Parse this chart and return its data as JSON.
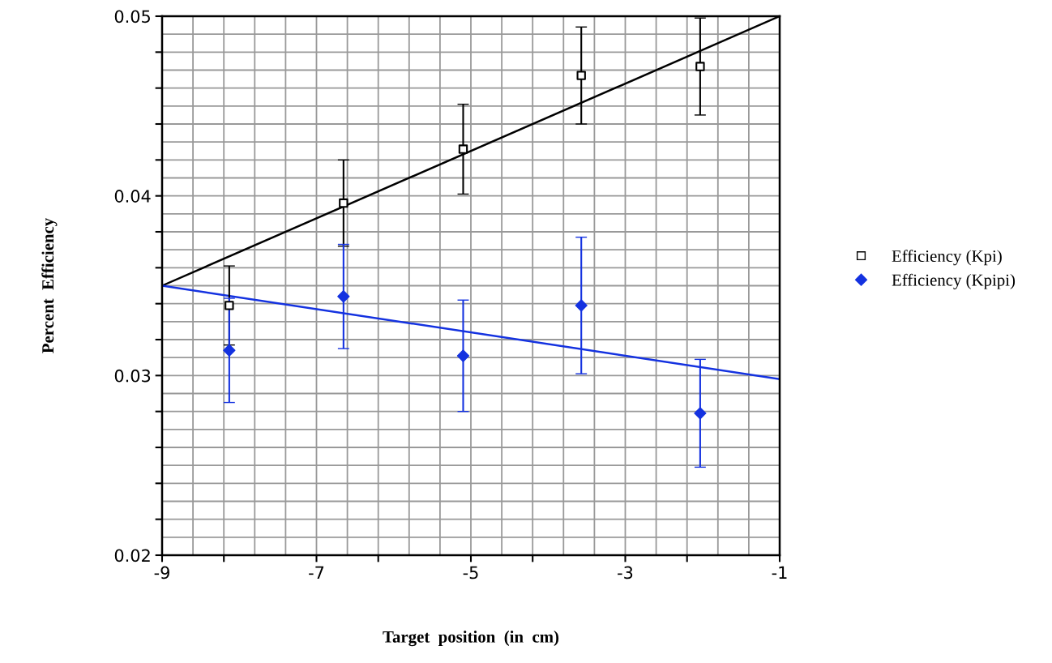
{
  "chart_data": {
    "type": "scatter",
    "xlabel": "Target  position  (in  cm)",
    "ylabel": "Percent  Efficiency",
    "xlim": [
      -9,
      -1
    ],
    "xticks": [
      -9,
      {
        "value": -8.2,
        "label": null
      },
      -7,
      {
        "value": -6.2,
        "label": null
      },
      -5,
      {
        "value": -4.2,
        "label": null
      },
      -3,
      {
        "value": -2.2,
        "label": null
      },
      -1
    ],
    "ylim": [
      0.02,
      0.05
    ],
    "yticks": [
      0.02,
      {
        "value": 0.022,
        "label": null
      },
      {
        "value": 0.024,
        "label": null
      },
      {
        "value": 0.026,
        "label": null
      },
      {
        "value": 0.028,
        "label": null
      },
      0.03,
      {
        "value": 0.032,
        "label": null
      },
      {
        "value": 0.034,
        "label": null
      },
      {
        "value": 0.036,
        "label": null
      },
      {
        "value": 0.038,
        "label": null
      },
      0.04,
      {
        "value": 0.042,
        "label": null
      },
      {
        "value": 0.044,
        "label": null
      },
      {
        "value": 0.046,
        "label": null
      },
      {
        "value": 0.048,
        "label": null
      },
      0.05
    ],
    "grid": true,
    "legend": "right",
    "series": [
      {
        "name": "Efficiency (Kpi)",
        "color": "#000000",
        "marker": "square",
        "x": [
          -8.13,
          -6.65,
          -5.1,
          -3.57,
          -2.03
        ],
        "values": [
          0.0339,
          0.0396,
          0.0426,
          0.0467,
          0.0472
        ],
        "errors": [
          0.0022,
          0.0024,
          0.0025,
          0.0027,
          0.0027
        ]
      },
      {
        "name": "Efficiency (Kpipi)",
        "color": "#1432e0",
        "marker": "diamond",
        "x": [
          -8.13,
          -6.65,
          -5.1,
          -3.57,
          -2.03
        ],
        "values": [
          0.0314,
          0.0344,
          0.0311,
          0.0339,
          0.0279
        ],
        "errors": [
          0.0029,
          0.0029,
          0.0031,
          0.0038,
          0.003
        ]
      },
      {
        "type": "line",
        "color": "#000000",
        "marker": "none",
        "x": [
          -9,
          -1
        ],
        "values": [
          0.035,
          0.05
        ]
      },
      {
        "type": "line",
        "color": "#1432e0",
        "marker": "none",
        "x": [
          -9,
          -1
        ],
        "values": [
          0.035,
          0.0298
        ]
      }
    ]
  }
}
